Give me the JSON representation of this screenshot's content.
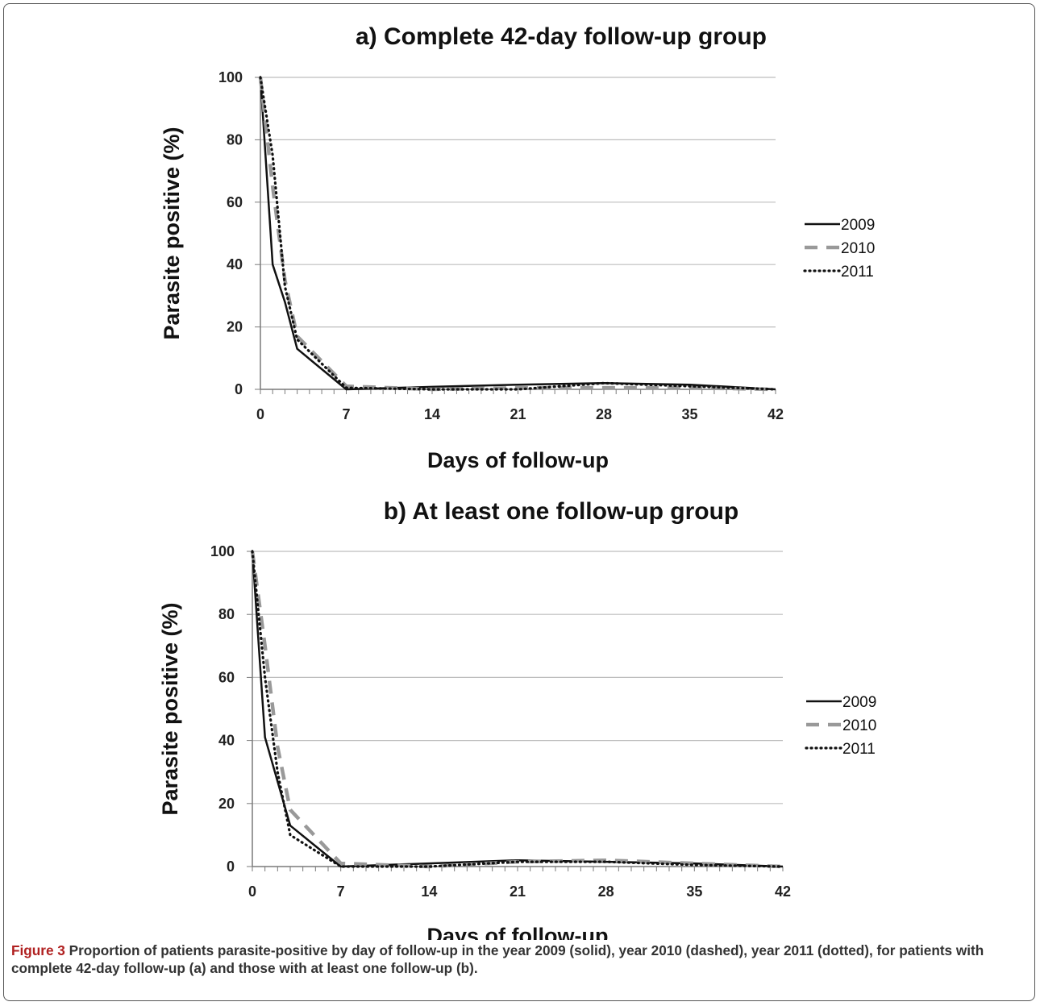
{
  "chart_data": [
    {
      "type": "line",
      "title": "a) Complete 42-day follow-up group",
      "xlabel": "Days of follow-up",
      "ylabel": "Parasite positive (%)",
      "xlim": [
        0,
        42
      ],
      "ylim": [
        0,
        100
      ],
      "xticks": [
        0,
        7,
        14,
        21,
        28,
        35,
        42
      ],
      "yticks": [
        0,
        20,
        40,
        60,
        80,
        100
      ],
      "grid": "horizontal",
      "legend": "right",
      "series": [
        {
          "name": "2009",
          "style": "solid",
          "color": "#111111",
          "x": [
            0,
            1,
            2,
            3,
            7,
            14,
            21,
            28,
            35,
            42
          ],
          "y": [
            100,
            40,
            28,
            13,
            0,
            0.8,
            1.5,
            2,
            1.5,
            0
          ]
        },
        {
          "name": "2010",
          "style": "dashed",
          "color": "#999999",
          "x": [
            0,
            1,
            2,
            3,
            7,
            14,
            21,
            28,
            35,
            42
          ],
          "y": [
            100,
            65,
            35,
            17,
            1,
            0,
            0.5,
            0.5,
            0.5,
            0
          ]
        },
        {
          "name": "2011",
          "style": "dotted",
          "color": "#111111",
          "x": [
            0,
            1,
            2,
            3,
            7,
            14,
            21,
            28,
            35,
            42
          ],
          "y": [
            100,
            75,
            33,
            16,
            0.5,
            0,
            0,
            2,
            1,
            0
          ]
        }
      ]
    },
    {
      "type": "line",
      "title": "b) At least one follow-up group",
      "xlabel": "Days of follow-up",
      "ylabel": "Parasite positive (%)",
      "xlim": [
        0,
        42
      ],
      "ylim": [
        0,
        100
      ],
      "xticks": [
        0,
        7,
        14,
        21,
        28,
        35,
        42
      ],
      "yticks": [
        0,
        20,
        40,
        60,
        80,
        100
      ],
      "grid": "horizontal",
      "legend": "right",
      "series": [
        {
          "name": "2009",
          "style": "solid",
          "color": "#111111",
          "x": [
            0,
            1,
            2,
            3,
            7,
            14,
            21,
            28,
            35,
            42
          ],
          "y": [
            100,
            41,
            27,
            13,
            0,
            1,
            2,
            1.5,
            1,
            0
          ]
        },
        {
          "name": "2010",
          "style": "dashed",
          "color": "#999999",
          "x": [
            0,
            1,
            2,
            3,
            7,
            14,
            21,
            28,
            35,
            42
          ],
          "y": [
            100,
            70,
            38,
            18,
            1,
            0,
            1.5,
            2,
            1,
            0
          ]
        },
        {
          "name": "2011",
          "style": "dotted",
          "color": "#111111",
          "x": [
            0,
            1,
            2,
            3,
            7,
            14,
            21,
            28,
            35,
            42
          ],
          "y": [
            100,
            60,
            30,
            10,
            0,
            0,
            1.5,
            1.5,
            0.5,
            0
          ]
        }
      ]
    }
  ],
  "caption": {
    "lead": "Figure 3",
    "text": "Proportion of patients parasite-positive by day of follow-up in the year 2009 (solid), year 2010 (dashed), year 2011 (dotted), for patients with complete 42-day follow-up (a) and those with at least one follow-up (b)."
  }
}
